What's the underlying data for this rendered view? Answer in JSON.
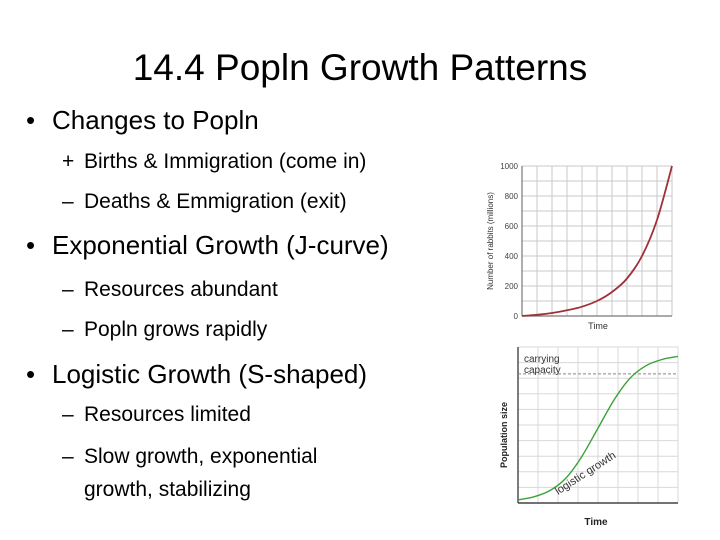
{
  "slide": {
    "title": "14.4 Popln Growth Patterns",
    "bullets": [
      {
        "text": "Changes to Popln",
        "subs": [
          {
            "marker": "+",
            "text": "Births & Immigration (come in)"
          },
          {
            "marker": "–",
            "text": "Deaths & Emmigration (exit)"
          }
        ]
      },
      {
        "text": "Exponential Growth (J-curve)",
        "subs": [
          {
            "marker": "–",
            "text": "Resources abundant"
          },
          {
            "marker": "–",
            "text": "Popln grows rapidly"
          }
        ]
      },
      {
        "text": "Logistic Growth (S-shaped)",
        "subs": [
          {
            "marker": "–",
            "text": "Resources limited"
          },
          {
            "marker": "–",
            "text": "Slow growth, exponential",
            "continuation": "growth, stabilizing"
          }
        ]
      }
    ],
    "bullet_char": "•"
  },
  "chart_data": [
    {
      "type": "line",
      "title": "",
      "xlabel": "Time",
      "ylabel": "Number of rabbits (millions)",
      "ylim": [
        0,
        1000
      ],
      "yticks": [
        "0",
        "200",
        "400",
        "600",
        "800",
        "1000"
      ],
      "grid": true,
      "legend": "none",
      "series": [
        {
          "color": "#a0303a",
          "x": [
            0,
            1,
            2,
            3,
            4,
            5,
            6,
            7,
            8,
            9,
            10
          ],
          "values": [
            0,
            8,
            20,
            38,
            62,
            100,
            160,
            250,
            400,
            640,
            1000
          ]
        }
      ]
    },
    {
      "type": "line",
      "title": "",
      "xlabel": "Time",
      "ylabel": "Population size",
      "grid": true,
      "legend": "none",
      "annotations": [
        "carrying capacity",
        "logistic growth"
      ],
      "carrying_capacity_label": [
        "carrying",
        "capacity"
      ],
      "curve_label": "logistic growth",
      "series": [
        {
          "color": "#3aa23a",
          "x": [
            0,
            1,
            2,
            3,
            4,
            5,
            6,
            7,
            8,
            9,
            10
          ],
          "values": [
            0.02,
            0.04,
            0.08,
            0.16,
            0.3,
            0.48,
            0.66,
            0.8,
            0.88,
            0.92,
            0.94
          ]
        }
      ],
      "carrying_capacity": 0.96
    }
  ]
}
